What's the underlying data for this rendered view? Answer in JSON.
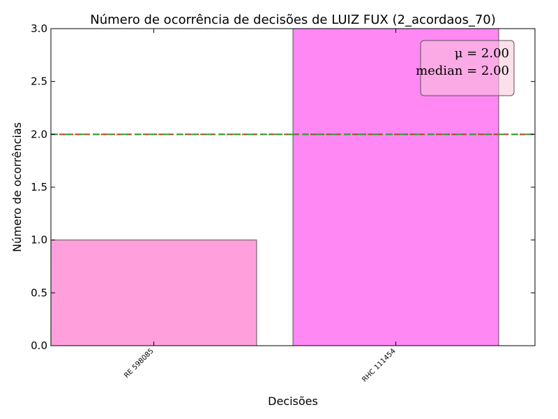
{
  "chart_data": {
    "type": "bar",
    "title": "Número de ocorrência de decisões de LUIZ FUX (2_acordaos_70)",
    "xlabel": "Decisões",
    "ylabel": "Número de ocorrências",
    "categories": [
      "RE 598085",
      "RHC 111454"
    ],
    "values": [
      1,
      3
    ],
    "bar_colors": [
      "#ffa0dc",
      "#ff88f4"
    ],
    "ylim": [
      0,
      3.0
    ],
    "yticks": [
      "0.0",
      "0.5",
      "1.0",
      "1.5",
      "2.0",
      "2.5",
      "3.0"
    ],
    "reference_lines": [
      {
        "value": 2.0,
        "color": "#d62728",
        "style": "dashed"
      },
      {
        "value": 2.0,
        "color": "#2ca02c",
        "style": "dash-dot"
      }
    ],
    "annotation": {
      "lines": [
        "μ = 2.00",
        "median = 2.00"
      ],
      "background": "#f7c7d9",
      "placement": "top-right"
    },
    "grid": false
  }
}
